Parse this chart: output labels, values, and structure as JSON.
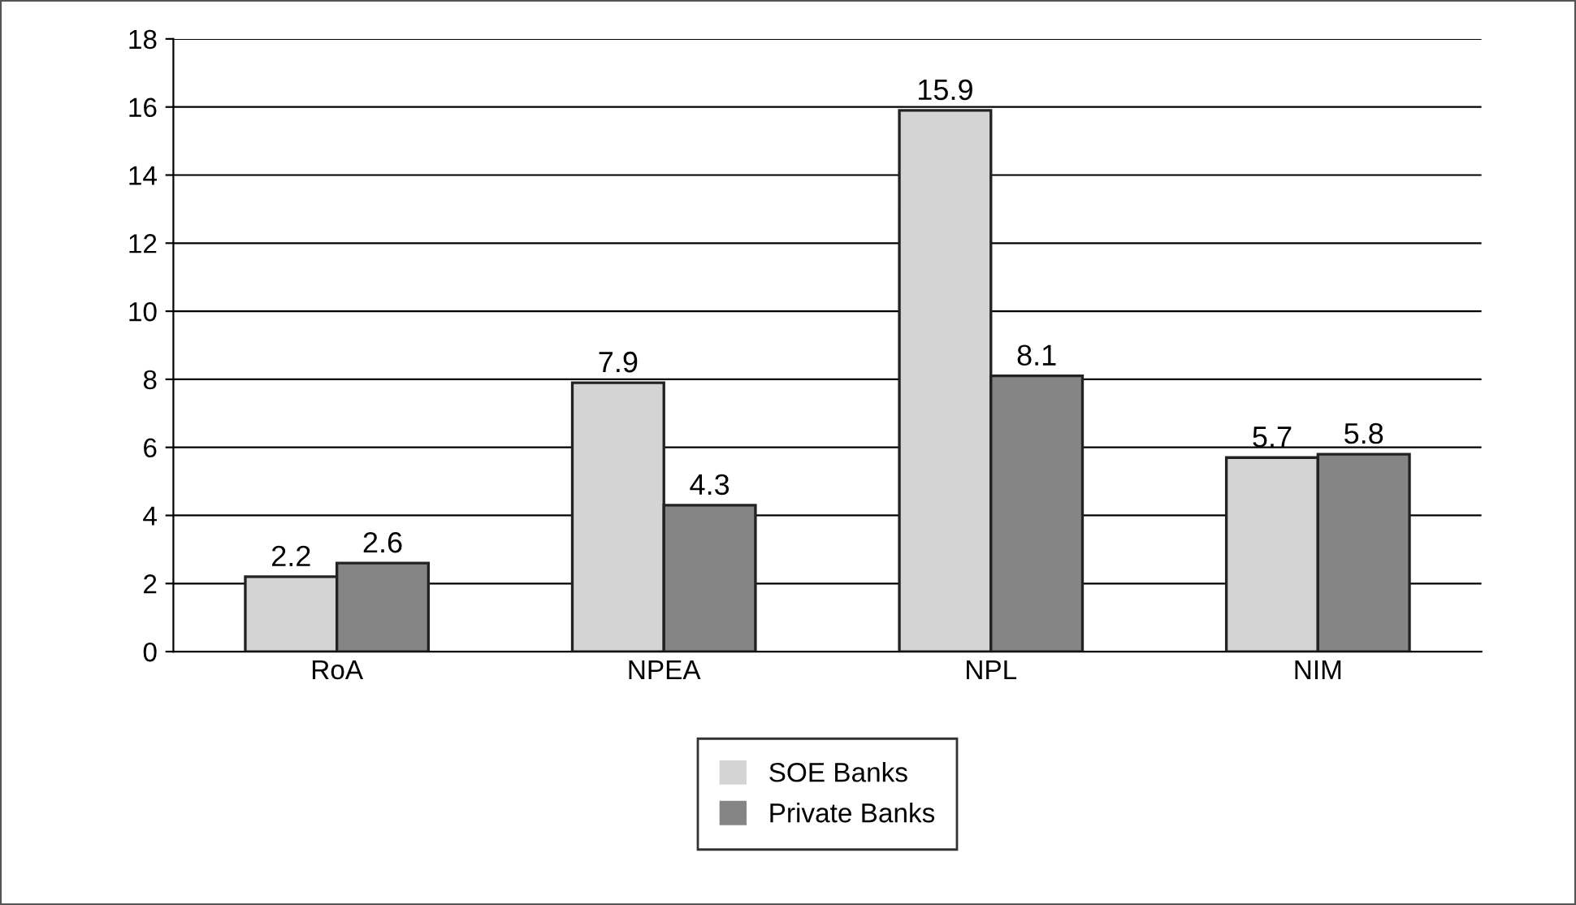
{
  "chart_data": {
    "type": "bar",
    "categories": [
      "RoA",
      "NPEA",
      "NPL",
      "NIM"
    ],
    "series": [
      {
        "name": "SOE Banks",
        "color": "#d4d4d4",
        "values": [
          2.2,
          7.9,
          15.9,
          5.7
        ]
      },
      {
        "name": "Private Banks",
        "color": "#858585",
        "values": [
          2.6,
          4.3,
          8.1,
          5.8
        ]
      }
    ],
    "ylim": [
      0,
      18
    ],
    "yticks": [
      0,
      2,
      4,
      6,
      8,
      10,
      12,
      14,
      16,
      18
    ],
    "grid": "y",
    "legend": "bottom",
    "data_labels": true
  }
}
